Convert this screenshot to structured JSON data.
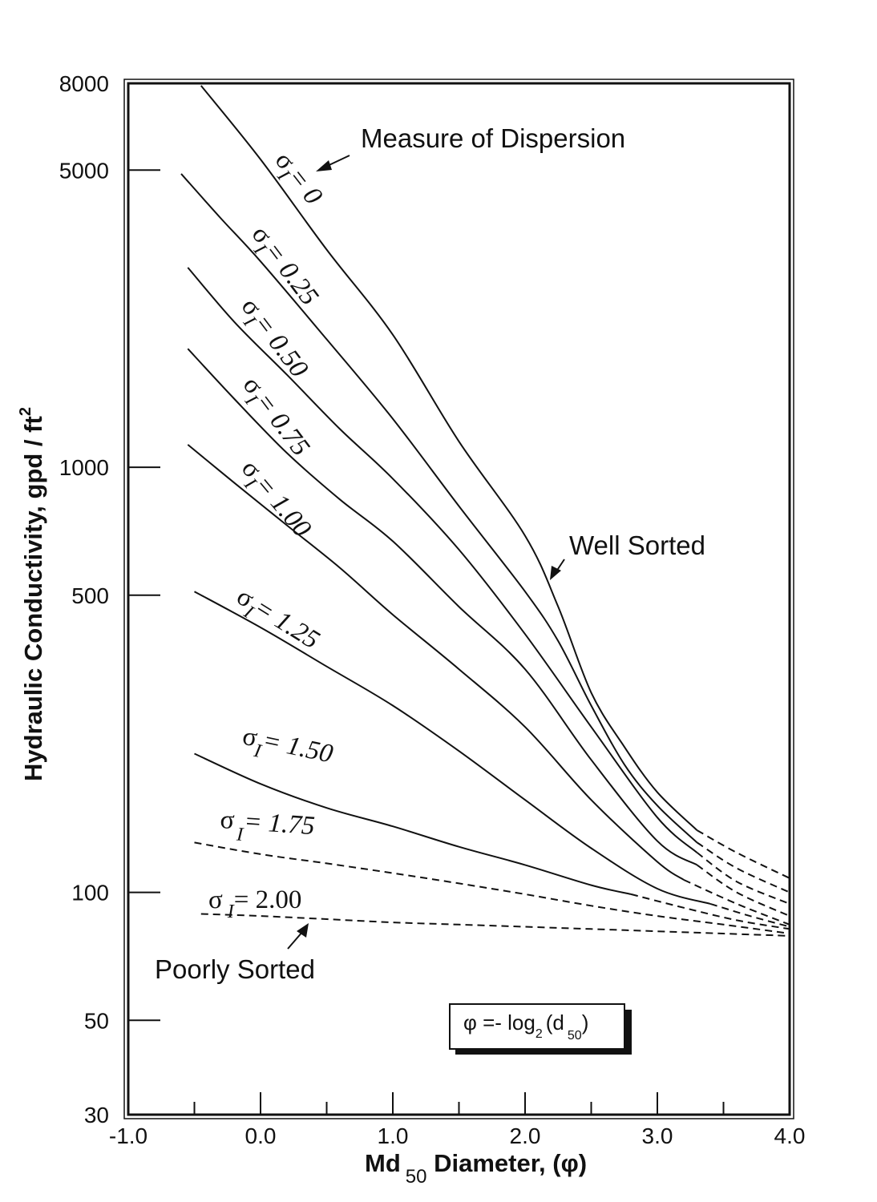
{
  "chart_data": {
    "type": "line",
    "title": "",
    "xlabel": "Md",
    "xlabel_sub": "50",
    "xlabel_suffix": " Diameter, (φ)",
    "ylabel": "Hydraulic Conductivity, gpd / ft",
    "ylabel_sup": "2",
    "xscale": "linear",
    "yscale": "log",
    "xlim": [
      -1.0,
      4.0
    ],
    "ylim": [
      30,
      8000
    ],
    "x_ticks": [
      -1.0,
      -0.5,
      0.0,
      0.5,
      1.0,
      1.5,
      2.0,
      2.5,
      3.0,
      3.5,
      4.0
    ],
    "x_tick_labels": [
      "-1.0",
      "0.0",
      "1.0",
      "2.0",
      "3.0",
      "4.0"
    ],
    "x_tick_label_values": [
      -1.0,
      0.0,
      1.0,
      2.0,
      3.0,
      4.0
    ],
    "y_ticks": [
      8000,
      5000,
      1000,
      500,
      100,
      50,
      30
    ],
    "y_tick_labels": [
      "8000",
      "5000",
      "1000",
      "500",
      "100",
      "50",
      "30"
    ],
    "grid": false,
    "series": [
      {
        "name": "σ I = 0",
        "solid": [
          [
            -0.45,
            7900
          ],
          [
            0.0,
            5300
          ],
          [
            0.5,
            3250
          ],
          [
            1.0,
            2050
          ],
          [
            1.5,
            1150
          ],
          [
            2.0,
            690
          ],
          [
            2.25,
            470
          ],
          [
            2.5,
            295
          ],
          [
            2.75,
            220
          ],
          [
            3.0,
            172
          ],
          [
            3.3,
            140
          ]
        ],
        "dashed": [
          [
            3.3,
            140
          ],
          [
            3.6,
            124
          ],
          [
            4.0,
            108
          ]
        ]
      },
      {
        "name": "σ I = 0.25",
        "solid": [
          [
            -0.6,
            4900
          ],
          [
            -0.3,
            3850
          ],
          [
            0.0,
            3050
          ],
          [
            0.5,
            2000
          ],
          [
            1.0,
            1300
          ],
          [
            1.5,
            810
          ],
          [
            2.0,
            510
          ],
          [
            2.25,
            390
          ],
          [
            2.5,
            275
          ],
          [
            2.75,
            200
          ],
          [
            3.0,
            160
          ],
          [
            3.3,
            131
          ]
        ],
        "dashed": [
          [
            3.3,
            131
          ],
          [
            3.6,
            114
          ],
          [
            4.0,
            100
          ]
        ]
      },
      {
        "name": "σ I = 0.50",
        "solid": [
          [
            -0.55,
            2950
          ],
          [
            -0.2,
            2200
          ],
          [
            0.2,
            1650
          ],
          [
            0.6,
            1230
          ],
          [
            1.0,
            940
          ],
          [
            1.5,
            640
          ],
          [
            2.0,
            405
          ],
          [
            2.5,
            245
          ],
          [
            3.0,
            150
          ],
          [
            3.3,
            124
          ]
        ],
        "dashed": [
          [
            3.3,
            124
          ],
          [
            3.6,
            106
          ],
          [
            4.0,
            94
          ]
        ]
      },
      {
        "name": "σ I = 0.75",
        "solid": [
          [
            -0.55,
            1900
          ],
          [
            -0.2,
            1450
          ],
          [
            0.2,
            1080
          ],
          [
            0.6,
            840
          ],
          [
            1.0,
            670
          ],
          [
            1.5,
            470
          ],
          [
            2.0,
            335
          ],
          [
            2.5,
            205
          ],
          [
            3.0,
            132
          ],
          [
            3.3,
            116
          ]
        ],
        "dashed": [
          [
            3.3,
            116
          ],
          [
            3.6,
            100
          ],
          [
            4.0,
            88
          ]
        ]
      },
      {
        "name": "σ I = 1.00",
        "solid": [
          [
            -0.55,
            1130
          ],
          [
            -0.2,
            920
          ],
          [
            0.2,
            730
          ],
          [
            0.6,
            580
          ],
          [
            1.0,
            450
          ],
          [
            1.5,
            335
          ],
          [
            2.0,
            245
          ],
          [
            2.5,
            165
          ],
          [
            3.0,
            118
          ],
          [
            3.2,
            107
          ]
        ],
        "dashed": [
          [
            3.2,
            107
          ],
          [
            3.6,
            94
          ],
          [
            4.0,
            84
          ]
        ]
      },
      {
        "name": "σ I = 1.25",
        "solid": [
          [
            -0.5,
            510
          ],
          [
            0.0,
            420
          ],
          [
            0.5,
            340
          ],
          [
            1.0,
            275
          ],
          [
            1.5,
            215
          ],
          [
            2.0,
            165
          ],
          [
            2.5,
            127
          ],
          [
            3.0,
            102
          ],
          [
            3.4,
            94
          ]
        ],
        "dashed": [
          [
            3.4,
            94
          ],
          [
            3.7,
            88
          ],
          [
            4.0,
            83
          ]
        ]
      },
      {
        "name": "σ I = 1.50",
        "solid": [
          [
            -0.5,
            212
          ],
          [
            0.0,
            180
          ],
          [
            0.5,
            158
          ],
          [
            1.0,
            143
          ],
          [
            1.5,
            128
          ],
          [
            2.0,
            116
          ],
          [
            2.5,
            104
          ],
          [
            2.8,
            99
          ]
        ],
        "dashed": [
          [
            2.8,
            99
          ],
          [
            3.2,
            92
          ],
          [
            3.6,
            86
          ],
          [
            4.0,
            82
          ]
        ]
      },
      {
        "name": "σ I = 1.75",
        "solid": [],
        "dashed": [
          [
            -0.5,
            131
          ],
          [
            0.0,
            123
          ],
          [
            0.5,
            117
          ],
          [
            1.0,
            111
          ],
          [
            1.5,
            105
          ],
          [
            2.0,
            99
          ],
          [
            2.5,
            93
          ],
          [
            3.0,
            88
          ],
          [
            3.5,
            84
          ],
          [
            4.0,
            80
          ]
        ]
      },
      {
        "name": "σ I = 2.00",
        "solid": [],
        "dashed": [
          [
            -0.45,
            89
          ],
          [
            0.0,
            88
          ],
          [
            0.5,
            86.5
          ],
          [
            1.0,
            85
          ],
          [
            1.5,
            84
          ],
          [
            2.0,
            83
          ],
          [
            2.5,
            82
          ],
          [
            3.0,
            81
          ],
          [
            3.5,
            80
          ],
          [
            4.0,
            79
          ]
        ]
      }
    ],
    "curve_labels": [
      {
        "sym": "σ",
        "sub": "I",
        "eq": "= 0"
      },
      {
        "sym": "σ",
        "sub": "I",
        "eq": "= 0.25"
      },
      {
        "sym": "σ",
        "sub": "I",
        "eq": "= 0.50"
      },
      {
        "sym": "σ",
        "sub": "I",
        "eq": "= 0.75"
      },
      {
        "sym": "σ",
        "sub": "I",
        "eq": "= 1.00"
      },
      {
        "sym": "σ",
        "sub": "I",
        "eq": "= 1.25"
      },
      {
        "sym": "σ",
        "sub": "I",
        "eq": "= 1.50"
      },
      {
        "sym": "σ",
        "sub": "I",
        "eq": "= 1.75"
      },
      {
        "sym": "σ",
        "sub": "I",
        "eq": "= 2.00"
      }
    ],
    "annotations": {
      "measure": "Measure of Dispersion",
      "well": "Well Sorted",
      "poorly": "Poorly Sorted",
      "formula_phi": "φ =- log",
      "formula_sub2": "2",
      "formula_d": "(d",
      "formula_sub50": "50",
      "formula_close": ")"
    }
  }
}
